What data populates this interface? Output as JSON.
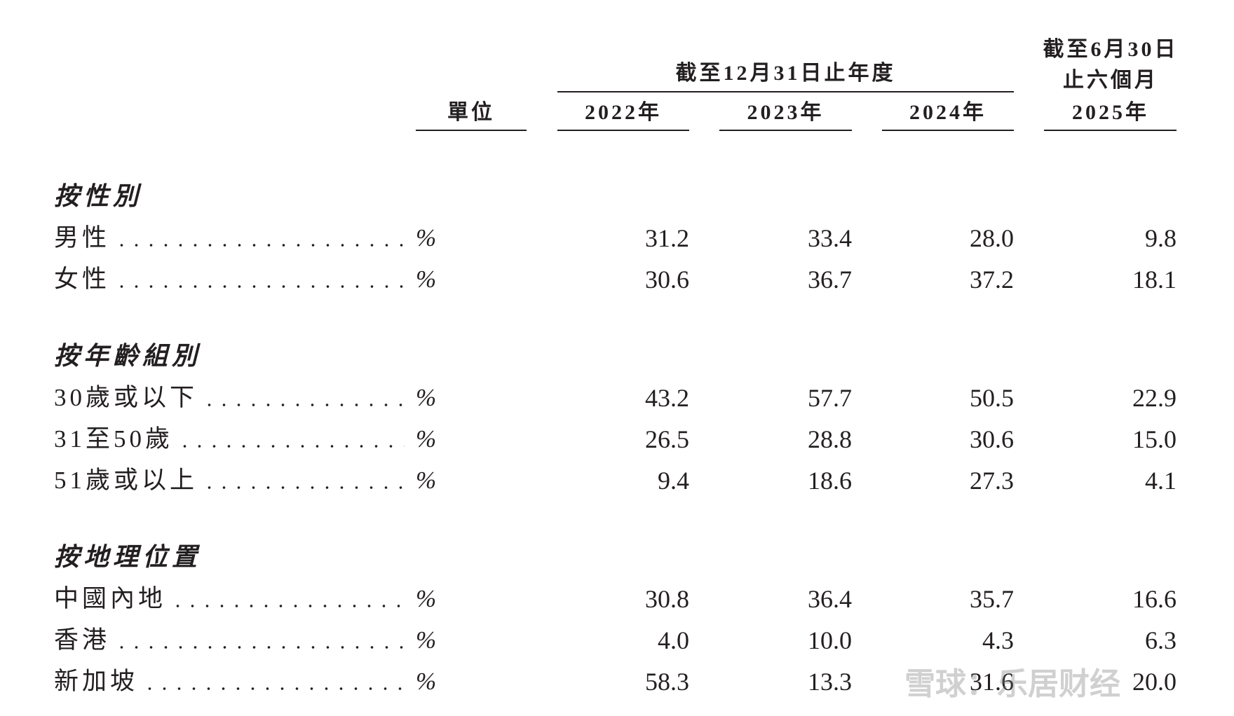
{
  "header": {
    "unit": "單位",
    "period_group": "截至12月31日止年度",
    "years": [
      "2022年",
      "2023年",
      "2024年"
    ],
    "interim": [
      "截至6月30日",
      "止六個月",
      "2025年"
    ]
  },
  "sections": [
    {
      "title": "按性別",
      "rows": [
        {
          "label": "男性",
          "unit": "%",
          "values": [
            "31.2",
            "33.4",
            "28.0",
            "9.8"
          ]
        },
        {
          "label": "女性",
          "unit": "%",
          "values": [
            "30.6",
            "36.7",
            "37.2",
            "18.1"
          ]
        }
      ]
    },
    {
      "title": "按年齡組別",
      "rows": [
        {
          "label": "30歲或以下",
          "unit": "%",
          "values": [
            "43.2",
            "57.7",
            "50.5",
            "22.9"
          ]
        },
        {
          "label": "31至50歲",
          "unit": "%",
          "values": [
            "26.5",
            "28.8",
            "30.6",
            "15.0"
          ]
        },
        {
          "label": "51歲或以上",
          "unit": "%",
          "values": [
            "9.4",
            "18.6",
            "27.3",
            "4.1"
          ]
        }
      ]
    },
    {
      "title": "按地理位置",
      "rows": [
        {
          "label": "中國內地",
          "unit": "%",
          "values": [
            "30.8",
            "36.4",
            "35.7",
            "16.6"
          ]
        },
        {
          "label": "香港",
          "unit": "%",
          "values": [
            "4.0",
            "10.0",
            "4.3",
            "6.3"
          ]
        },
        {
          "label": "新加坡",
          "unit": "%",
          "values": [
            "58.3",
            "13.3",
            "31.6",
            "20.0"
          ]
        }
      ]
    }
  ],
  "watermark": "雪球：乐居财经"
}
